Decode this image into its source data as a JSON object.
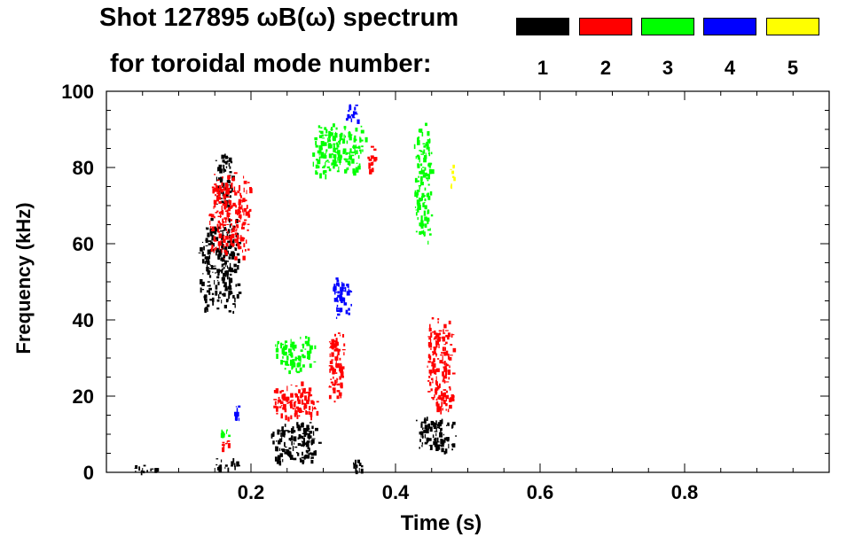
{
  "chart_data": {
    "type": "scatter",
    "title_line1": "Shot 127895 ωB(ω) spectrum",
    "title_line2": "for toroidal mode number:",
    "xlabel": "Time (s)",
    "ylabel": "Frequency (kHz)",
    "xlim": [
      0.0,
      1.0
    ],
    "ylim": [
      0,
      100
    ],
    "x_ticks": [
      0.2,
      0.4,
      0.6,
      0.8
    ],
    "x_tick_labels": [
      "0.2",
      "0.4",
      "0.6",
      "0.8"
    ],
    "y_ticks": [
      0,
      20,
      40,
      60,
      80,
      100
    ],
    "y_tick_labels": [
      "0",
      "20",
      "40",
      "60",
      "80",
      "100"
    ],
    "legend": [
      {
        "label": "1",
        "color": "#000000"
      },
      {
        "label": "2",
        "color": "#ff0000"
      },
      {
        "label": "3",
        "color": "#00ff00"
      },
      {
        "label": "4",
        "color": "#0000ff"
      },
      {
        "label": "5",
        "color": "#ffff00"
      }
    ],
    "series": [
      {
        "name": "1",
        "color": "#000000",
        "regions": [
          {
            "t": [
              0.125,
              0.185
            ],
            "f": [
              42,
              68
            ]
          },
          {
            "t": [
              0.148,
              0.175
            ],
            "f": [
              70,
              85
            ]
          },
          {
            "t": [
              0.225,
              0.295
            ],
            "f": [
              2,
              14
            ]
          },
          {
            "t": [
              0.425,
              0.485
            ],
            "f": [
              5,
              15
            ]
          },
          {
            "t": [
              0.34,
              0.358
            ],
            "f": [
              0,
              4
            ]
          },
          {
            "t": [
              0.145,
              0.185
            ],
            "f": [
              1,
              4
            ]
          },
          {
            "t": [
              0.03,
              0.07
            ],
            "f": [
              0,
              2
            ]
          }
        ]
      },
      {
        "name": "2",
        "color": "#ff0000",
        "regions": [
          {
            "t": [
              0.14,
              0.2
            ],
            "f": [
              56,
              80
            ]
          },
          {
            "t": [
              0.228,
              0.292
            ],
            "f": [
              14,
              24
            ]
          },
          {
            "t": [
              0.305,
              0.33
            ],
            "f": [
              18,
              38
            ]
          },
          {
            "t": [
              0.44,
              0.48
            ],
            "f": [
              14,
              42
            ]
          },
          {
            "t": [
              0.36,
              0.372
            ],
            "f": [
              78,
              88
            ]
          },
          {
            "t": [
              0.155,
              0.172
            ],
            "f": [
              6,
              9
            ]
          }
        ]
      },
      {
        "name": "3",
        "color": "#00ff00",
        "regions": [
          {
            "t": [
              0.23,
              0.29
            ],
            "f": [
              26,
              36
            ]
          },
          {
            "t": [
              0.28,
              0.36
            ],
            "f": [
              78,
              92
            ]
          },
          {
            "t": [
              0.425,
              0.45
            ],
            "f": [
              60,
              93
            ]
          },
          {
            "t": [
              0.155,
              0.17
            ],
            "f": [
              8,
              12
            ]
          }
        ]
      },
      {
        "name": "4",
        "color": "#0000ff",
        "regions": [
          {
            "t": [
              0.31,
              0.34
            ],
            "f": [
              40,
              52
            ]
          },
          {
            "t": [
              0.33,
              0.35
            ],
            "f": [
              92,
              97
            ]
          },
          {
            "t": [
              0.175,
              0.185
            ],
            "f": [
              14,
              18
            ]
          }
        ]
      },
      {
        "name": "5",
        "color": "#ffff00",
        "regions": [
          {
            "t": [
              0.475,
              0.482
            ],
            "f": [
              74,
              82
            ]
          }
        ]
      }
    ]
  }
}
